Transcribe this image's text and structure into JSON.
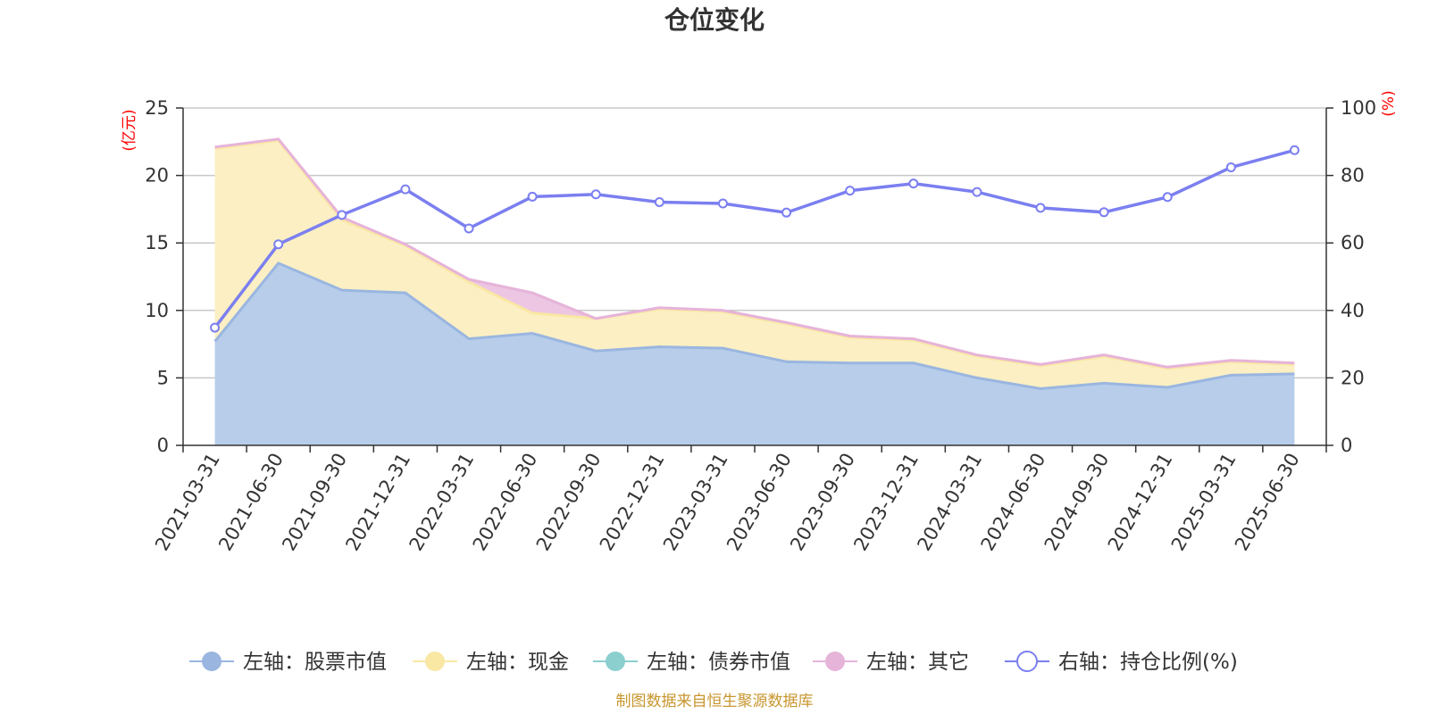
{
  "chart_data": {
    "type": "area",
    "title": "仓位变化",
    "left_unit": "(亿元)",
    "right_unit": "(%)",
    "categories": [
      "2021-03-31",
      "2021-06-30",
      "2021-09-30",
      "2021-12-31",
      "2022-03-31",
      "2022-06-30",
      "2022-09-30",
      "2022-12-31",
      "2023-03-31",
      "2023-06-30",
      "2023-09-30",
      "2023-12-31",
      "2024-03-31",
      "2024-06-30",
      "2024-09-30",
      "2024-12-31",
      "2025-03-31",
      "2025-06-30"
    ],
    "left_ylim": [
      0,
      25
    ],
    "left_ticks": [
      0,
      5,
      10,
      15,
      20,
      25
    ],
    "right_ylim": [
      0,
      100
    ],
    "right_ticks": [
      0,
      20,
      40,
      60,
      80,
      100
    ],
    "grid": true,
    "legend_position": "bottom",
    "series": [
      {
        "name": "左轴：股票市值",
        "axis": "left",
        "stack": true,
        "color": "#9ab6e0",
        "fill": "#b7cdea",
        "values": [
          7.7,
          13.5,
          11.5,
          11.3,
          7.9,
          8.3,
          7.0,
          7.3,
          7.2,
          6.2,
          6.1,
          6.1,
          5.0,
          4.2,
          4.6,
          4.3,
          5.2,
          5.3
        ]
      },
      {
        "name": "左轴：现金",
        "axis": "left",
        "stack": true,
        "color": "#f9e7a4",
        "fill": "#fbefc3",
        "values": [
          14.3,
          9.1,
          5.2,
          3.5,
          4.2,
          1.5,
          2.4,
          2.8,
          2.7,
          2.8,
          1.9,
          1.7,
          1.6,
          1.7,
          2.0,
          1.4,
          1.0,
          0.7
        ]
      },
      {
        "name": "左轴：债券市值",
        "axis": "left",
        "stack": true,
        "color": "#8ccfcf",
        "fill": "#a9dcdc",
        "values": [
          0,
          0,
          0,
          0,
          0,
          0,
          0,
          0,
          0,
          0,
          0,
          0,
          0,
          0,
          0,
          0,
          0,
          0
        ]
      },
      {
        "name": "左轴：其它",
        "axis": "left",
        "stack": true,
        "color": "#e6b3d9",
        "fill": "#ecc6e2",
        "values": [
          0.1,
          0.1,
          0.2,
          0.1,
          0.2,
          1.5,
          0.0,
          0.1,
          0.1,
          0.1,
          0.1,
          0.1,
          0.1,
          0.1,
          0.1,
          0.1,
          0.1,
          0.1
        ]
      },
      {
        "name": "右轴：持仓比例(%)",
        "axis": "right",
        "stack": false,
        "color": "#7b7ff0",
        "values": [
          34.9,
          59.6,
          68.3,
          75.9,
          64.3,
          73.7,
          74.4,
          72.1,
          71.7,
          69.0,
          75.5,
          77.6,
          75.1,
          70.4,
          69.1,
          73.6,
          82.4,
          87.5
        ]
      }
    ]
  },
  "source": "制图数据来自恒生聚源数据库"
}
